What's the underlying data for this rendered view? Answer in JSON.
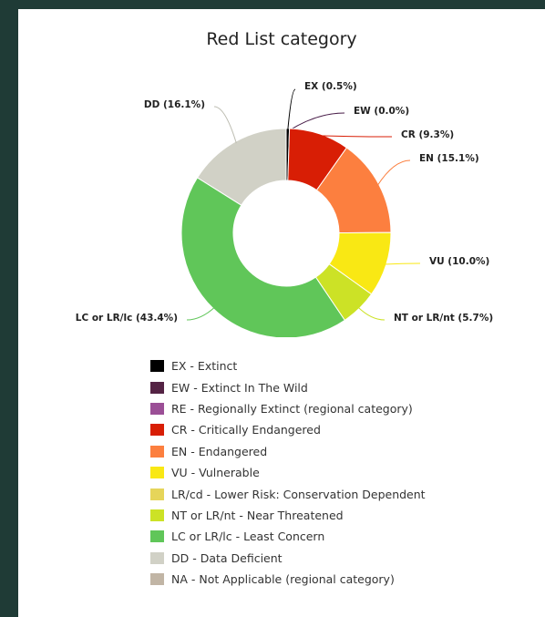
{
  "chart_data": {
    "type": "donut",
    "title": "Red List category",
    "slices": [
      {
        "code": "EX",
        "label": "EX (0.5%)",
        "value": 0.5,
        "color": "#000000"
      },
      {
        "code": "EW",
        "label": "EW (0.0%)",
        "value": 0.0,
        "color": "#4a1f4a"
      },
      {
        "code": "CR",
        "label": "CR (9.3%)",
        "value": 9.3,
        "color": "#d81e05"
      },
      {
        "code": "EN",
        "label": "EN (15.1%)",
        "value": 15.1,
        "color": "#fc7f3f"
      },
      {
        "code": "VU",
        "label": "VU (10.0%)",
        "value": 10.0,
        "color": "#f9e814"
      },
      {
        "code": "NT",
        "label": "NT or LR/nt (5.7%)",
        "value": 5.7,
        "color": "#cce226"
      },
      {
        "code": "LC",
        "label": "LC or LR/lc (43.4%)",
        "value": 43.4,
        "color": "#60c659"
      },
      {
        "code": "DD",
        "label": "DD (16.1%)",
        "value": 16.1,
        "color": "#d1d1c6"
      }
    ],
    "legend": [
      {
        "label": "EX - Extinct",
        "color": "#000000"
      },
      {
        "label": "EW - Extinct In The Wild",
        "color": "#542344"
      },
      {
        "label": "RE - Regionally Extinct (regional category)",
        "color": "#9b4f96"
      },
      {
        "label": "CR - Critically Endangered",
        "color": "#d81e05"
      },
      {
        "label": "EN - Endangered",
        "color": "#fc7f3f"
      },
      {
        "label": "VU - Vulnerable",
        "color": "#f9e814"
      },
      {
        "label": "LR/cd - Lower Risk: Conservation Dependent",
        "color": "#e6d55a"
      },
      {
        "label": "NT or LR/nt - Near Threatened",
        "color": "#cce226"
      },
      {
        "label": "LC or LR/lc - Least Concern",
        "color": "#60c659"
      },
      {
        "label": "DD - Data Deficient",
        "color": "#d1d1c6"
      },
      {
        "label": "NA - Not Applicable (regional category)",
        "color": "#c1b5a5"
      }
    ]
  }
}
